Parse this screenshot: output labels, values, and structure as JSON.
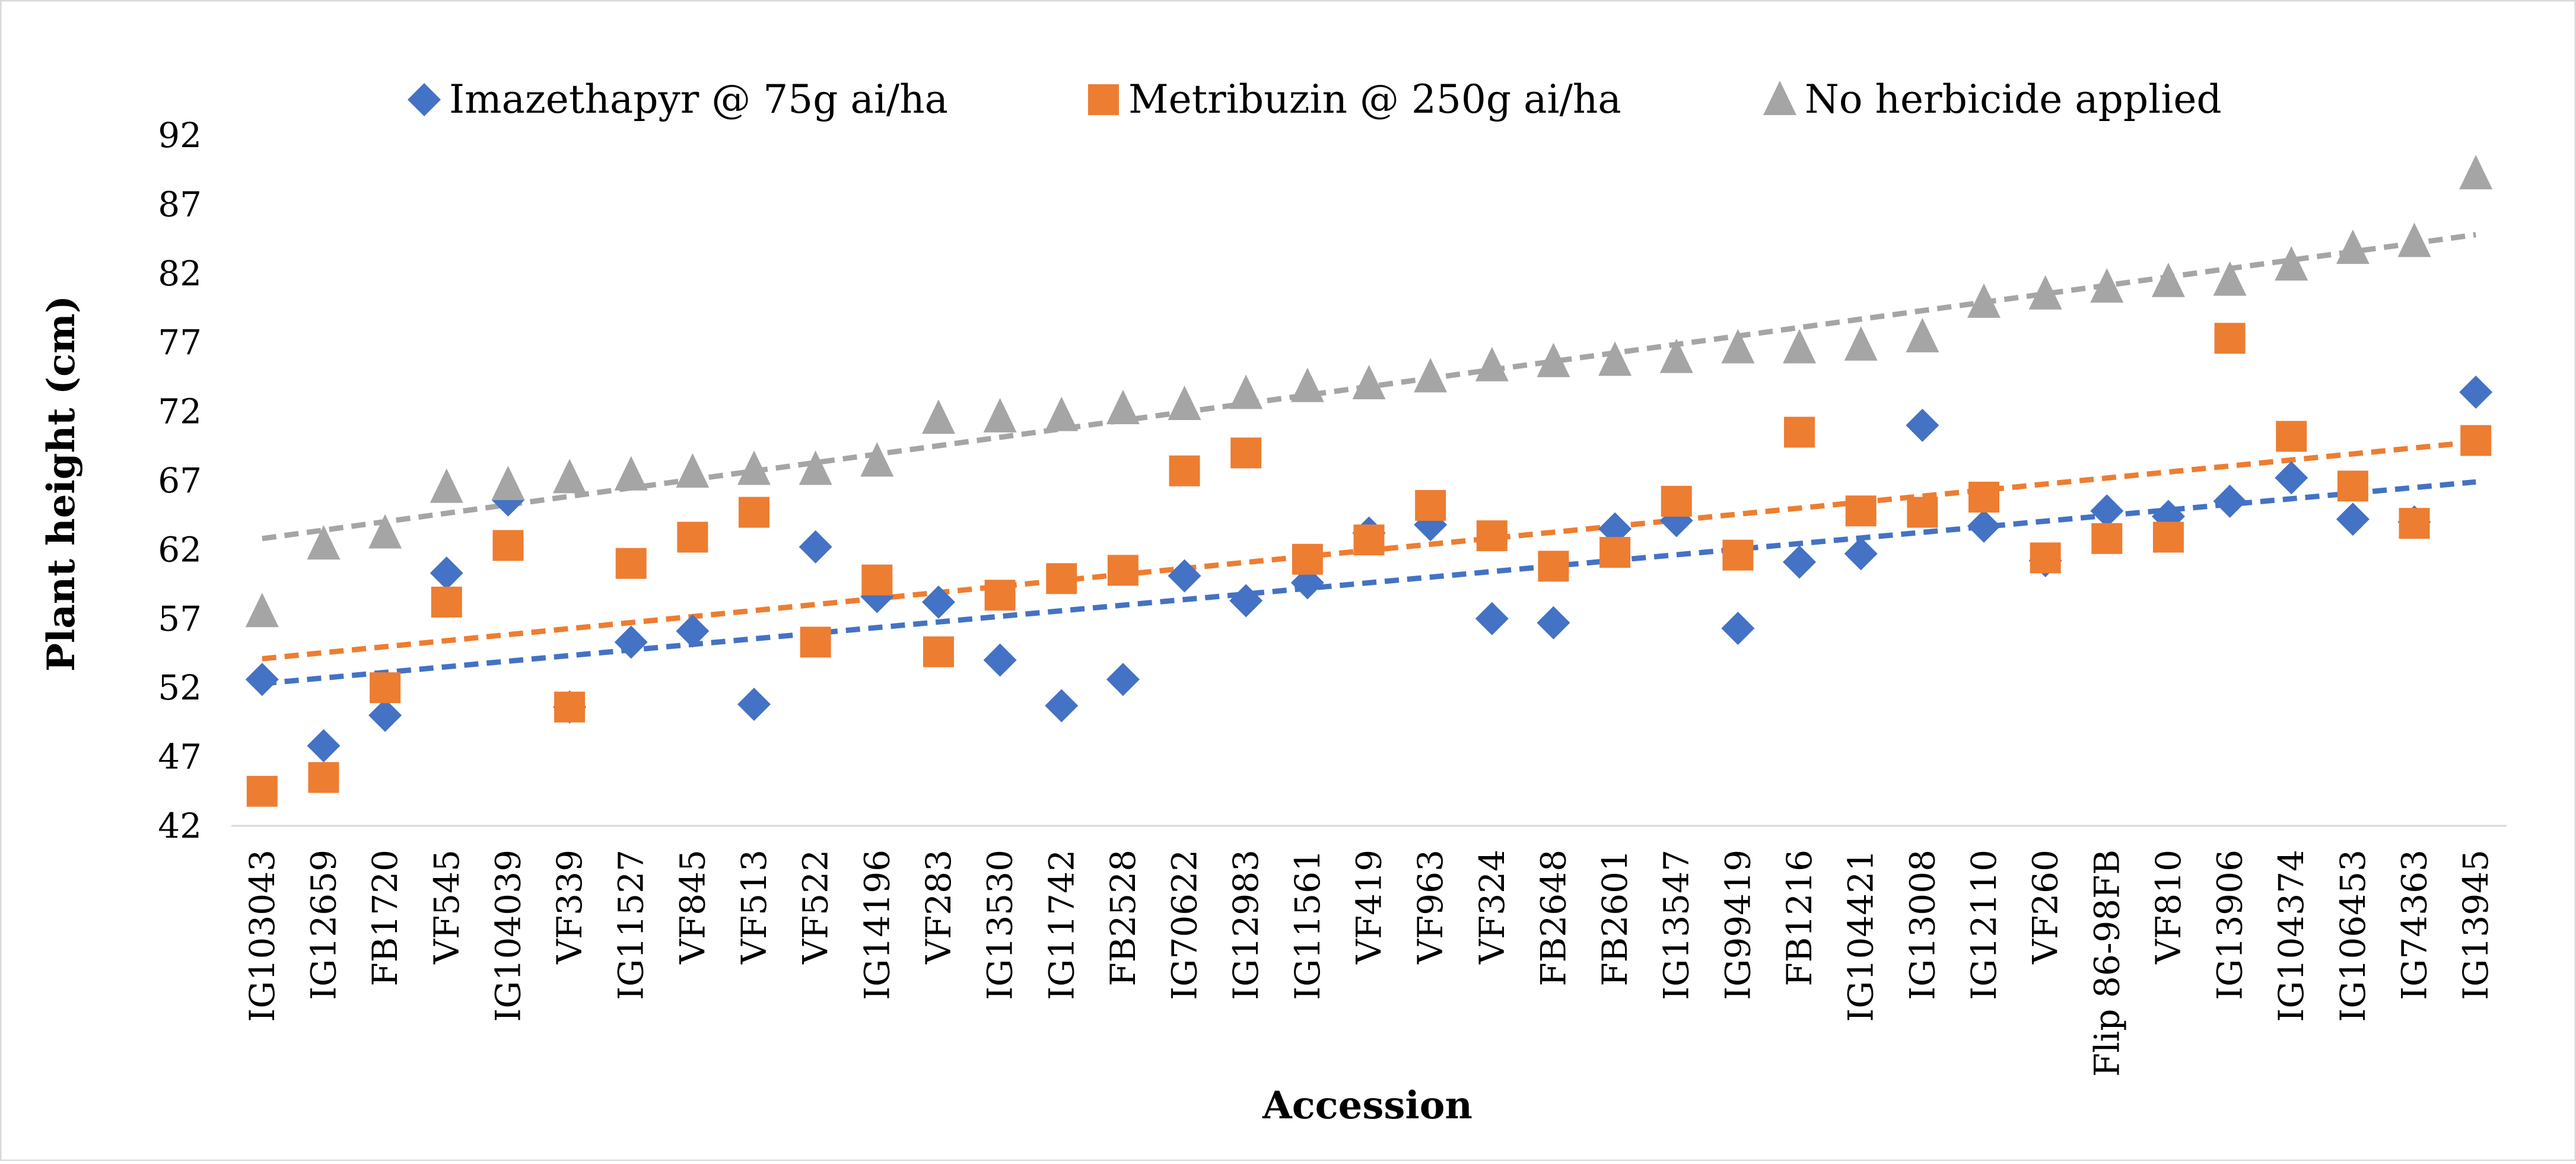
{
  "chart_data": {
    "type": "scatter",
    "title": "",
    "xlabel": "Accession",
    "ylabel": "Plant height (cm)",
    "ylim": [
      42,
      92
    ],
    "yticks": [
      42,
      47,
      52,
      57,
      62,
      67,
      72,
      77,
      82,
      87,
      92
    ],
    "grid": false,
    "legend_position": "top-center",
    "categories": [
      "IG103043",
      "IG12659",
      "FB1720",
      "VF545",
      "IG104039",
      "VF339",
      "IG11527",
      "VF845",
      "VF513",
      "VF522",
      "IG14196",
      "VF283",
      "IG13530",
      "IG11742",
      "FB2528",
      "IG70622",
      "IG12983",
      "IG11561",
      "VF419",
      "VF963",
      "VF324",
      "FB2648",
      "FB2601",
      "IG13547",
      "IG99419",
      "FB1216",
      "IG104421",
      "IG13008",
      "IG12110",
      "VF260",
      "Flip 86-98FB",
      "VF810",
      "IG13906",
      "IG104374",
      "IG106453",
      "IG74363",
      "IG13945"
    ],
    "series": [
      {
        "name": "Imazethapyr @ 75g ai/ha",
        "marker": "diamond",
        "color": "#4472C4",
        "values": [
          52.6,
          47.8,
          50.0,
          60.3,
          65.6,
          50.6,
          55.3,
          56.1,
          50.8,
          62.2,
          58.6,
          58.2,
          54.0,
          50.7,
          52.6,
          60.1,
          58.3,
          59.6,
          63.2,
          63.8,
          57.0,
          56.7,
          63.5,
          64.1,
          56.3,
          61.1,
          61.7,
          71.0,
          63.7,
          61.2,
          64.8,
          64.4,
          65.5,
          67.2,
          64.2,
          64.0,
          73.4
        ],
        "trendline": {
          "style": "dashed",
          "start": 52.3,
          "end": 66.9
        }
      },
      {
        "name": "Metribuzin @ 250g ai/ha",
        "marker": "square",
        "color": "#ED7D31",
        "values": [
          44.5,
          45.5,
          52.0,
          58.2,
          62.3,
          50.6,
          61.0,
          62.9,
          64.7,
          55.3,
          59.8,
          54.6,
          58.7,
          59.9,
          60.5,
          67.7,
          69.0,
          61.3,
          62.7,
          65.2,
          63.0,
          60.8,
          61.8,
          65.5,
          61.6,
          70.5,
          64.8,
          64.7,
          65.8,
          61.4,
          62.8,
          62.9,
          77.3,
          70.2,
          66.6,
          63.9,
          69.9
        ],
        "trendline": {
          "style": "dashed",
          "start": 54.1,
          "end": 69.8
        }
      },
      {
        "name": "No herbicide applied",
        "marker": "triangle",
        "color": "#A5A5A5",
        "values": [
          57.5,
          62.4,
          63.2,
          66.5,
          66.7,
          67.2,
          67.4,
          67.6,
          67.8,
          67.8,
          68.4,
          71.5,
          71.6,
          71.7,
          72.2,
          72.5,
          73.3,
          73.8,
          74.0,
          74.5,
          75.3,
          75.6,
          75.7,
          75.9,
          76.6,
          76.6,
          76.8,
          77.4,
          79.9,
          80.5,
          81.0,
          81.4,
          81.5,
          82.6,
          83.8,
          84.3,
          89.2
        ],
        "trendline": {
          "style": "dashed",
          "start": 62.8,
          "end": 84.8
        }
      }
    ]
  }
}
